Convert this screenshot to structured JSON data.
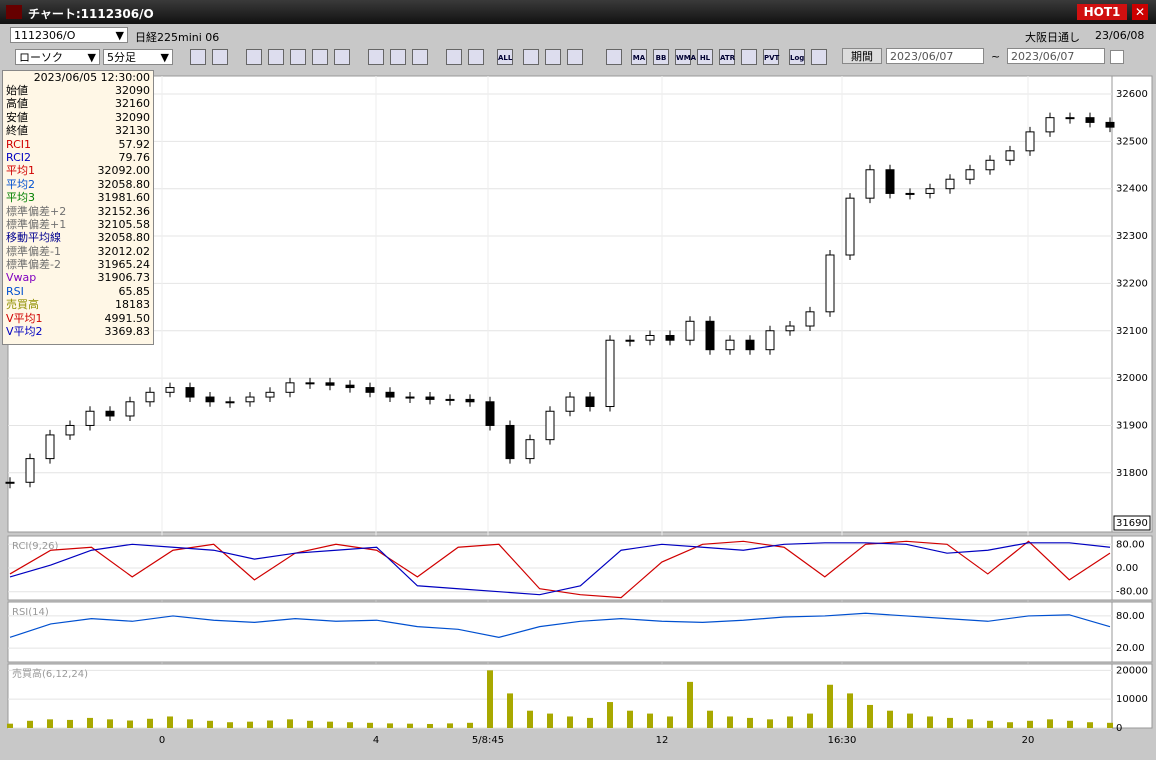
{
  "title_bar": {
    "title": "チャート:1112306/O",
    "hot": "HOT1"
  },
  "toolbar": {
    "symbol": "1112306/O",
    "name": "日経225mini 06",
    "market": "大阪日通し",
    "date": "23/06/08",
    "chart_type": "ローソク",
    "interval": "5分足",
    "period_button": "期間",
    "from": "2023/06/07",
    "tilde": "~",
    "to": "2023/06/07",
    "icon_labels": [
      "ALL",
      "MA",
      "BB",
      "WMA",
      "HL",
      "ATR",
      "PVT",
      "Log"
    ]
  },
  "info_panel": {
    "datetime": "2023/06/05 12:30:00",
    "rows": [
      {
        "label": "始値",
        "value": "32090",
        "color": "#000000"
      },
      {
        "label": "高値",
        "value": "32160",
        "color": "#000000"
      },
      {
        "label": "安値",
        "value": "32090",
        "color": "#000000"
      },
      {
        "label": "終値",
        "value": "32130",
        "color": "#000000"
      },
      {
        "label": "RCI1",
        "value": "57.92",
        "color": "#d00000"
      },
      {
        "label": "RCI2",
        "value": "79.76",
        "color": "#0000c0"
      },
      {
        "label": "平均1",
        "value": "32092.00",
        "color": "#d00000"
      },
      {
        "label": "平均2",
        "value": "32058.80",
        "color": "#0050d0"
      },
      {
        "label": "平均3",
        "value": "31981.60",
        "color": "#008000"
      },
      {
        "label": "標準偏差+2",
        "value": "32152.36",
        "color": "#707070"
      },
      {
        "label": "標準偏差+1",
        "value": "32105.58",
        "color": "#707070"
      },
      {
        "label": "移動平均線",
        "value": "32058.80",
        "color": "#000090"
      },
      {
        "label": "標準偏差-1",
        "value": "32012.02",
        "color": "#707070"
      },
      {
        "label": "標準偏差-2",
        "value": "31965.24",
        "color": "#707070"
      },
      {
        "label": "Vwap",
        "value": "31906.73",
        "color": "#8000c0"
      },
      {
        "label": "RSI",
        "value": "65.85",
        "color": "#0050d0"
      },
      {
        "label": "売買高",
        "value": "18183",
        "color": "#909000"
      },
      {
        "label": "V平均1",
        "value": "4991.50",
        "color": "#d00000"
      },
      {
        "label": "V平均2",
        "value": "3369.83",
        "color": "#0000c0"
      }
    ]
  },
  "chart_data": [
    {
      "type": "candlestick",
      "ylim": [
        31675,
        32638
      ],
      "yticks": [
        31800,
        31900,
        32000,
        32100,
        32200,
        32300,
        32400,
        32500,
        32600
      ],
      "current_price": "31690",
      "xlim": [
        0,
        55
      ],
      "xticks": [
        {
          "value": 7.6,
          "label": "0"
        },
        {
          "value": 18.3,
          "label": "4"
        },
        {
          "value": 23.9,
          "label": "5/8:45"
        },
        {
          "value": 32.6,
          "label": "12"
        },
        {
          "value": 41.6,
          "label": "16:30"
        },
        {
          "value": 50.9,
          "label": "20"
        }
      ],
      "series": [
        {
          "name": "終値",
          "color": "#000000",
          "values": [
            31780,
            31830,
            31880,
            31900,
            31930,
            31920,
            31950,
            31970,
            31980,
            31960,
            31950,
            31950,
            31960,
            31970,
            31990,
            31990,
            31985,
            31980,
            31970,
            31960,
            31960,
            31955,
            31955,
            31950,
            31900,
            31830,
            31870,
            31930,
            31960,
            31940,
            32080,
            32080,
            32090,
            32080,
            32120,
            32060,
            32080,
            32060,
            32100,
            32110,
            32140,
            32260,
            32380,
            32440,
            32390,
            32390,
            32400,
            32420,
            32440,
            32460,
            32480,
            32520,
            32550,
            32550,
            32540,
            32530
          ]
        }
      ]
    },
    {
      "type": "line",
      "title": "RCI(9,26)",
      "ylim": [
        -108,
        108
      ],
      "yticks": [
        {
          "value": 80,
          "label": "80.00"
        },
        {
          "value": 0,
          "label": "0.00"
        },
        {
          "value": -80,
          "label": "-80.00"
        }
      ],
      "series": [
        {
          "name": "RCI1",
          "color": "#d00000",
          "values": [
            -20,
            60,
            70,
            -30,
            60,
            80,
            -40,
            50,
            80,
            60,
            -30,
            70,
            80,
            -70,
            -90,
            -100,
            20,
            80,
            90,
            70,
            -30,
            80,
            90,
            80,
            -20,
            90,
            -40,
            50
          ]
        },
        {
          "name": "RCI2",
          "color": "#0000c0",
          "values": [
            -30,
            10,
            60,
            80,
            70,
            60,
            30,
            50,
            60,
            70,
            -60,
            -70,
            -80,
            -90,
            -60,
            60,
            80,
            70,
            60,
            80,
            85,
            85,
            80,
            50,
            60,
            85,
            85,
            70
          ]
        }
      ]
    },
    {
      "type": "line",
      "title": "RSI(14)",
      "ylim": [
        -6,
        106
      ],
      "yticks": [
        {
          "value": 80,
          "label": "80.00"
        },
        {
          "value": 20,
          "label": "20.00"
        }
      ],
      "series": [
        {
          "name": "RSI",
          "color": "#0050d0",
          "values": [
            40,
            65,
            75,
            70,
            80,
            72,
            68,
            75,
            70,
            72,
            60,
            55,
            40,
            60,
            70,
            75,
            70,
            68,
            72,
            78,
            80,
            85,
            80,
            75,
            70,
            80,
            82,
            60
          ]
        }
      ]
    },
    {
      "type": "bar",
      "title": "売買高(6,12,24)",
      "ylim": [
        0,
        22200
      ],
      "yticks": [
        0,
        10000,
        20000
      ],
      "series": [
        {
          "name": "売買高",
          "color": "#a8a800",
          "values": [
            1500,
            2500,
            3000,
            2800,
            3500,
            3000,
            2600,
            3200,
            4000,
            3000,
            2500,
            2000,
            2200,
            2600,
            3000,
            2500,
            2200,
            2000,
            1800,
            1600,
            1500,
            1400,
            1600,
            1800,
            20000,
            12000,
            6000,
            5000,
            4000,
            3500,
            9000,
            6000,
            5000,
            4000,
            16000,
            6000,
            4000,
            3500,
            3000,
            4000,
            5000,
            15000,
            12000,
            8000,
            6000,
            5000,
            4000,
            3500,
            3000,
            2500,
            2000,
            2500,
            3000,
            2500,
            2000,
            1800
          ]
        }
      ]
    }
  ]
}
